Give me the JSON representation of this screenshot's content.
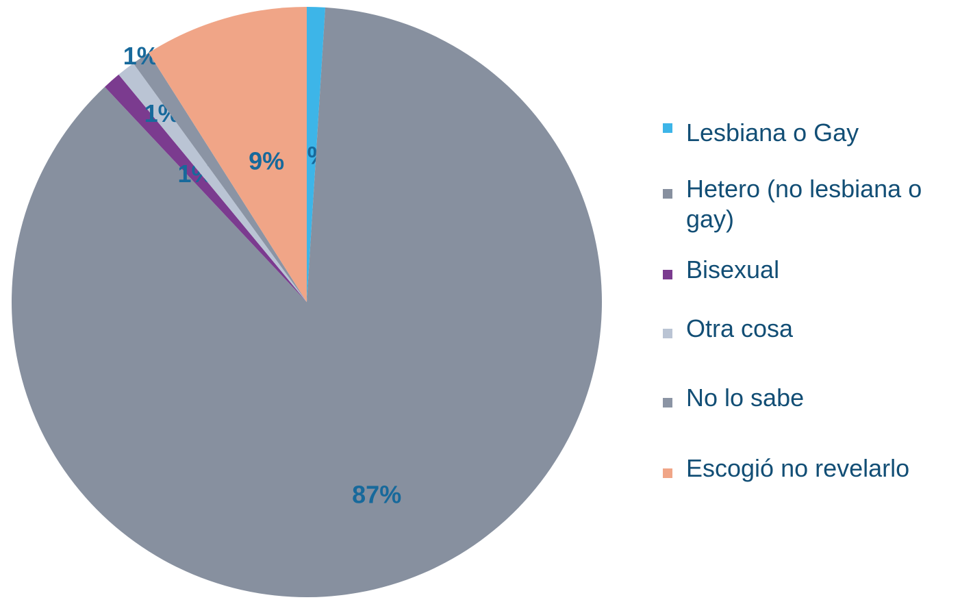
{
  "chart_data": {
    "type": "pie",
    "categories": [
      "Lesbiana o Gay",
      "Hetero (no lesbiana o gay)",
      "Bisexual",
      "Otra cosa",
      "No lo sabe",
      "Escogió no revelarlo"
    ],
    "values": [
      1,
      87,
      1,
      1,
      1,
      9
    ],
    "value_labels": [
      "1%",
      "87%",
      "1%",
      "1%",
      "1%",
      "9%"
    ],
    "colors": [
      "#3db5e8",
      "#87909f",
      "#7b3b8f",
      "#bac4d4",
      "#8b94a4",
      "#f0a587"
    ],
    "legend": "right"
  }
}
